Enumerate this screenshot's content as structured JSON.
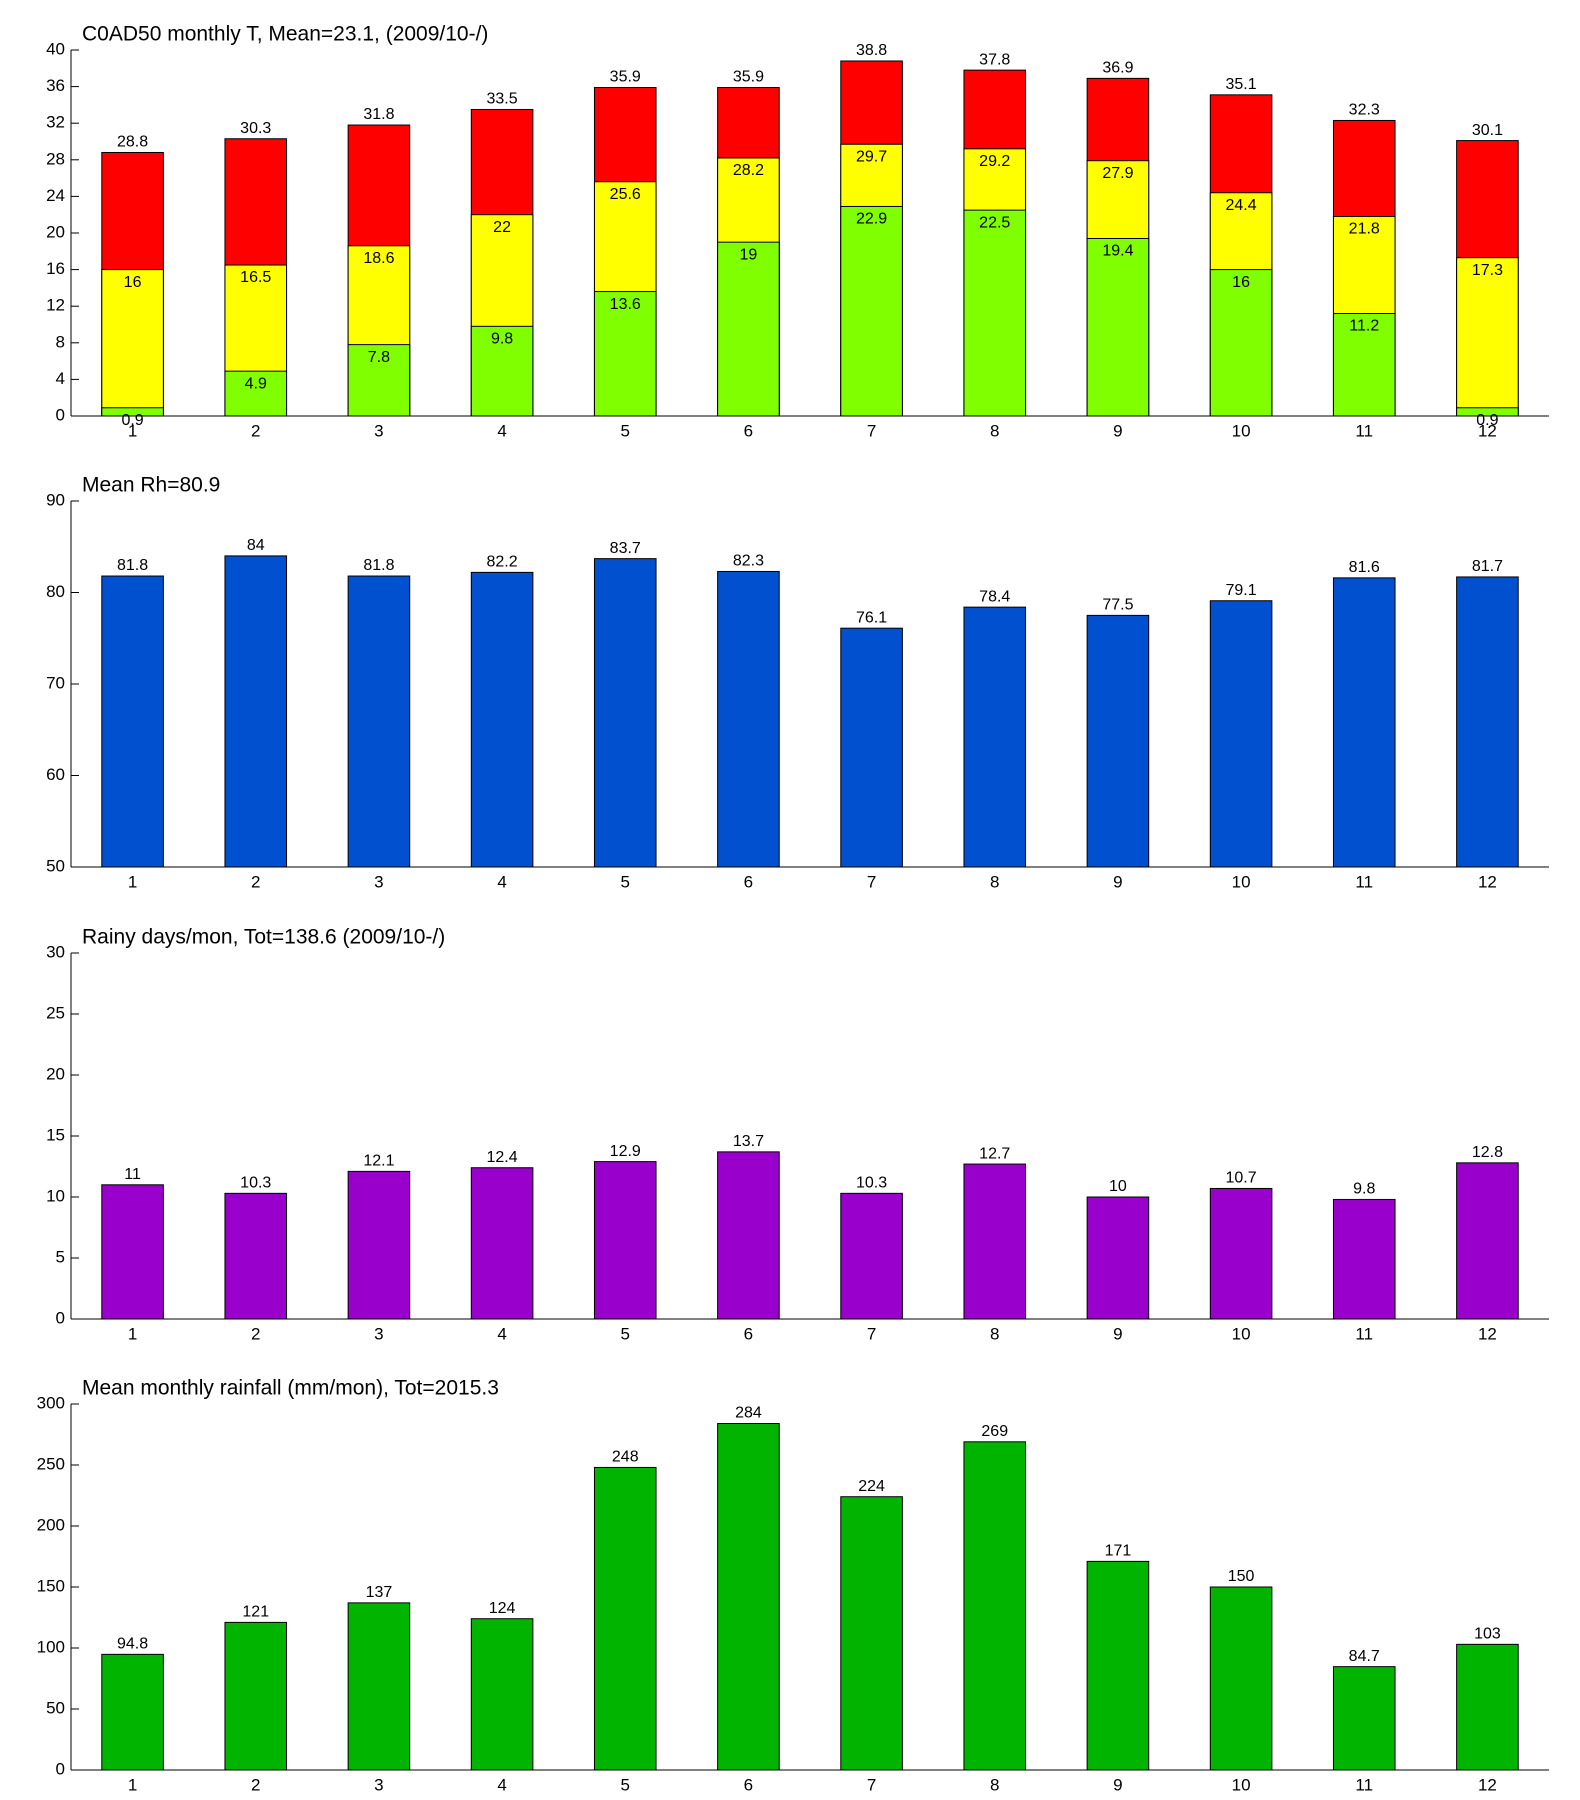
{
  "chart_data": [
    {
      "type": "bar",
      "title": "C0AD50 monthly T, Mean=23.1, (2009/10-/)",
      "categories": [
        "1",
        "2",
        "3",
        "4",
        "5",
        "6",
        "7",
        "8",
        "9",
        "10",
        "11",
        "12"
      ],
      "series": [
        {
          "color": "#ff0000",
          "values": [
            28.8,
            30.3,
            31.8,
            33.5,
            35.9,
            35.9,
            38.8,
            37.8,
            36.9,
            35.1,
            32.3,
            30.1
          ]
        },
        {
          "color": "#ffff00",
          "values": [
            16,
            16.5,
            18.6,
            22,
            25.6,
            28.2,
            29.7,
            29.2,
            27.9,
            24.4,
            21.8,
            17.3
          ]
        },
        {
          "color": "#80ff00",
          "values": [
            0.9,
            4.9,
            7.8,
            9.8,
            13.6,
            19,
            22.9,
            22.5,
            19.4,
            16,
            11.2,
            0.9
          ]
        }
      ],
      "ylim": [
        0,
        40
      ],
      "yticks": [
        0,
        4,
        8,
        12,
        16,
        20,
        24,
        28,
        32,
        36,
        40
      ]
    },
    {
      "type": "bar",
      "title": "Mean Rh=80.9",
      "categories": [
        "1",
        "2",
        "3",
        "4",
        "5",
        "6",
        "7",
        "8",
        "9",
        "10",
        "11",
        "12"
      ],
      "series": [
        {
          "color": "#0050d0",
          "values": [
            81.8,
            84,
            81.8,
            82.2,
            83.7,
            82.3,
            76.1,
            78.4,
            77.5,
            79.1,
            81.6,
            81.7
          ]
        }
      ],
      "ylim": [
        50,
        90
      ],
      "yticks": [
        50,
        60,
        70,
        80,
        90
      ]
    },
    {
      "type": "bar",
      "title": "Rainy days/mon, Tot=138.6 (2009/10-/)",
      "categories": [
        "1",
        "2",
        "3",
        "4",
        "5",
        "6",
        "7",
        "8",
        "9",
        "10",
        "11",
        "12"
      ],
      "series": [
        {
          "color": "#9900cc",
          "values": [
            11,
            10.3,
            12.1,
            12.4,
            12.9,
            13.7,
            10.3,
            12.7,
            10,
            10.7,
            9.8,
            12.8
          ]
        }
      ],
      "ylim": [
        0,
        30
      ],
      "yticks": [
        0,
        5,
        10,
        15,
        20,
        25,
        30
      ]
    },
    {
      "type": "bar",
      "title": "Mean monthly rainfall (mm/mon), Tot=2015.3",
      "categories": [
        "1",
        "2",
        "3",
        "4",
        "5",
        "6",
        "7",
        "8",
        "9",
        "10",
        "11",
        "12"
      ],
      "series": [
        {
          "color": "#00b400",
          "values": [
            94.8,
            121,
            137,
            124,
            248,
            284,
            224,
            269,
            171,
            150,
            84.7,
            103
          ]
        }
      ],
      "ylim": [
        0,
        300
      ],
      "yticks": [
        0,
        50,
        100,
        150,
        200,
        250,
        300
      ]
    }
  ]
}
